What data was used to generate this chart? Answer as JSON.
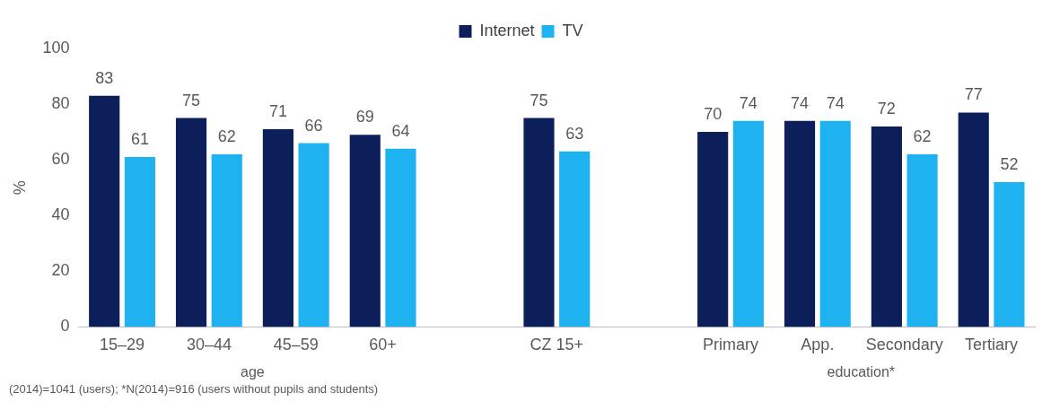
{
  "chart_data": {
    "type": "bar",
    "ylabel": "%",
    "categories": [
      "15–29",
      "30–44",
      "45–59",
      "60+",
      null,
      "CZ 15+",
      null,
      "Primary",
      "App.",
      "Secondary",
      "Tertiary"
    ],
    "series": [
      {
        "name": "Internet",
        "color": "#0c1f5b",
        "values": [
          83,
          75,
          71,
          69,
          null,
          75,
          null,
          70,
          74,
          72,
          77
        ]
      },
      {
        "name": "TV",
        "color": "#1eb3f0",
        "values": [
          61,
          62,
          66,
          64,
          null,
          63,
          null,
          74,
          74,
          62,
          52
        ]
      }
    ],
    "ylim": [
      0,
      100
    ],
    "yticks": [
      0,
      20,
      40,
      60,
      80,
      100
    ],
    "grid": false,
    "legend": "top",
    "data_labels": true,
    "annotations": [
      "age",
      "education*",
      "(2014)=1041 (users); *N(2014)=916 (users without pupils and students)"
    ]
  }
}
